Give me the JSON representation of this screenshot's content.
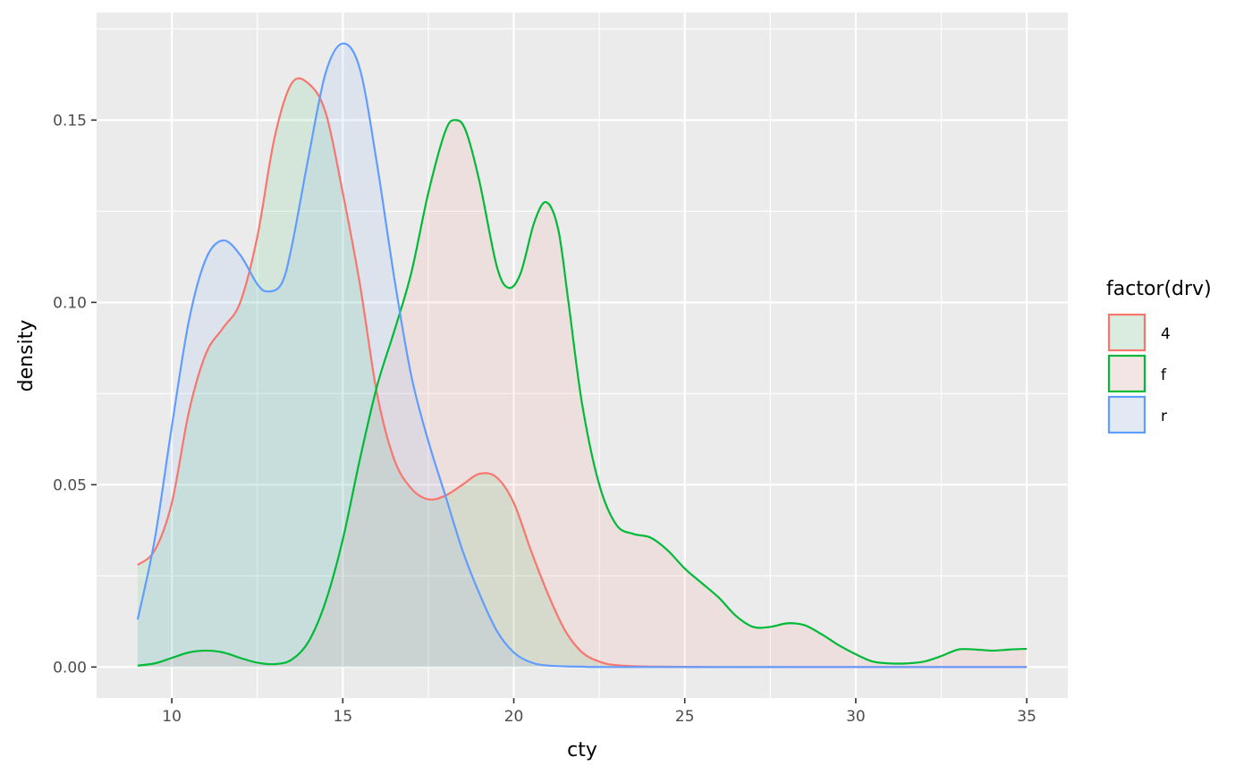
{
  "chart_data": {
    "type": "area",
    "title": "",
    "xlabel": "cty",
    "ylabel": "density",
    "xlim": [
      7.8,
      36.2
    ],
    "ylim": [
      -0.0085,
      0.1795
    ],
    "x_ticks": [
      10,
      15,
      20,
      25,
      30,
      35
    ],
    "y_ticks": [
      0.0,
      0.05,
      0.1,
      0.15
    ],
    "x_tick_labels": [
      "10",
      "15",
      "20",
      "25",
      "30",
      "35"
    ],
    "y_tick_labels": [
      "0.00",
      "0.05",
      "0.10",
      "0.15"
    ],
    "grid": true,
    "legend": {
      "title": "factor(drv)",
      "position": "right"
    },
    "series": [
      {
        "name": "4",
        "color": "#F8766D",
        "fill": "#00BA38",
        "points": [
          [
            9,
            0.028
          ],
          [
            9.5,
            0.032
          ],
          [
            10,
            0.045
          ],
          [
            10.5,
            0.07
          ],
          [
            11,
            0.086
          ],
          [
            11.5,
            0.093
          ],
          [
            12,
            0.1
          ],
          [
            12.5,
            0.118
          ],
          [
            13,
            0.145
          ],
          [
            13.5,
            0.16
          ],
          [
            14,
            0.16
          ],
          [
            14.5,
            0.152
          ],
          [
            15,
            0.13
          ],
          [
            15.5,
            0.105
          ],
          [
            16,
            0.075
          ],
          [
            16.5,
            0.057
          ],
          [
            17,
            0.049
          ],
          [
            17.5,
            0.046
          ],
          [
            18,
            0.047
          ],
          [
            18.5,
            0.05
          ],
          [
            19,
            0.053
          ],
          [
            19.5,
            0.052
          ],
          [
            20,
            0.045
          ],
          [
            20.5,
            0.032
          ],
          [
            21,
            0.02
          ],
          [
            21.5,
            0.01
          ],
          [
            22,
            0.004
          ],
          [
            22.5,
            0.0015
          ],
          [
            23,
            0.0005
          ],
          [
            24,
            0.0001
          ],
          [
            26,
            0
          ],
          [
            30,
            0
          ],
          [
            35,
            0
          ]
        ]
      },
      {
        "name": "f",
        "color": "#00BA38",
        "fill": "#F8766D",
        "points": [
          [
            9,
            0.0004
          ],
          [
            9.5,
            0.001
          ],
          [
            10,
            0.0025
          ],
          [
            10.5,
            0.004
          ],
          [
            11,
            0.0045
          ],
          [
            11.5,
            0.004
          ],
          [
            12,
            0.0025
          ],
          [
            12.5,
            0.0012
          ],
          [
            13,
            0.0008
          ],
          [
            13.5,
            0.002
          ],
          [
            14,
            0.007
          ],
          [
            14.5,
            0.018
          ],
          [
            15,
            0.035
          ],
          [
            15.5,
            0.057
          ],
          [
            16,
            0.077
          ],
          [
            16.5,
            0.092
          ],
          [
            17,
            0.108
          ],
          [
            17.5,
            0.13
          ],
          [
            18,
            0.147
          ],
          [
            18.3,
            0.15
          ],
          [
            18.6,
            0.147
          ],
          [
            19,
            0.133
          ],
          [
            19.5,
            0.11
          ],
          [
            19.85,
            0.104
          ],
          [
            20.2,
            0.108
          ],
          [
            20.6,
            0.122
          ],
          [
            20.95,
            0.1275
          ],
          [
            21.3,
            0.12
          ],
          [
            21.6,
            0.1
          ],
          [
            22,
            0.072
          ],
          [
            22.5,
            0.05
          ],
          [
            23,
            0.039
          ],
          [
            23.5,
            0.0365
          ],
          [
            24,
            0.0355
          ],
          [
            24.5,
            0.032
          ],
          [
            25,
            0.027
          ],
          [
            25.5,
            0.023
          ],
          [
            26,
            0.019
          ],
          [
            26.5,
            0.014
          ],
          [
            27,
            0.011
          ],
          [
            27.5,
            0.011
          ],
          [
            28,
            0.012
          ],
          [
            28.5,
            0.0115
          ],
          [
            29,
            0.009
          ],
          [
            29.5,
            0.006
          ],
          [
            30,
            0.0035
          ],
          [
            30.5,
            0.0015
          ],
          [
            31,
            0.001
          ],
          [
            31.5,
            0.001
          ],
          [
            32,
            0.0015
          ],
          [
            32.5,
            0.003
          ],
          [
            33,
            0.0048
          ],
          [
            33.5,
            0.0048
          ],
          [
            34,
            0.0045
          ],
          [
            34.5,
            0.0048
          ],
          [
            35,
            0.005
          ]
        ]
      },
      {
        "name": "r",
        "color": "#619CFF",
        "fill": "#619CFF",
        "points": [
          [
            9,
            0.013
          ],
          [
            9.5,
            0.035
          ],
          [
            10,
            0.066
          ],
          [
            10.5,
            0.095
          ],
          [
            11,
            0.112
          ],
          [
            11.5,
            0.117
          ],
          [
            12,
            0.113
          ],
          [
            12.5,
            0.105
          ],
          [
            12.8,
            0.103
          ],
          [
            13.2,
            0.105
          ],
          [
            13.5,
            0.115
          ],
          [
            14,
            0.14
          ],
          [
            14.5,
            0.163
          ],
          [
            15,
            0.171
          ],
          [
            15.5,
            0.164
          ],
          [
            16,
            0.138
          ],
          [
            16.5,
            0.107
          ],
          [
            17,
            0.08
          ],
          [
            17.5,
            0.062
          ],
          [
            18,
            0.047
          ],
          [
            18.5,
            0.032
          ],
          [
            19,
            0.02
          ],
          [
            19.5,
            0.01
          ],
          [
            20,
            0.004
          ],
          [
            20.5,
            0.0013
          ],
          [
            21,
            0.0004
          ],
          [
            22,
            0.0001
          ],
          [
            23,
            0
          ],
          [
            30,
            0
          ],
          [
            35,
            0
          ]
        ]
      }
    ]
  }
}
